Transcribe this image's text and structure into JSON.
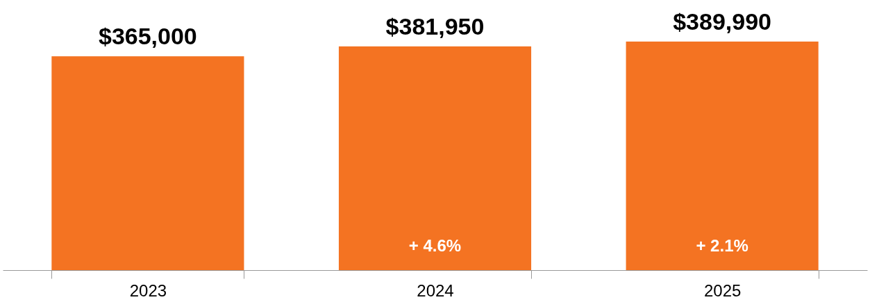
{
  "chart_data": {
    "type": "bar",
    "categories": [
      "2023",
      "2024",
      "2025"
    ],
    "values": [
      365000,
      381950,
      389990
    ],
    "value_labels": [
      "$365,000",
      "$381,950",
      "$389,990"
    ],
    "color": "#f47322",
    "annotations": [
      "+ 4.6%",
      "+ 2.1%"
    ]
  }
}
